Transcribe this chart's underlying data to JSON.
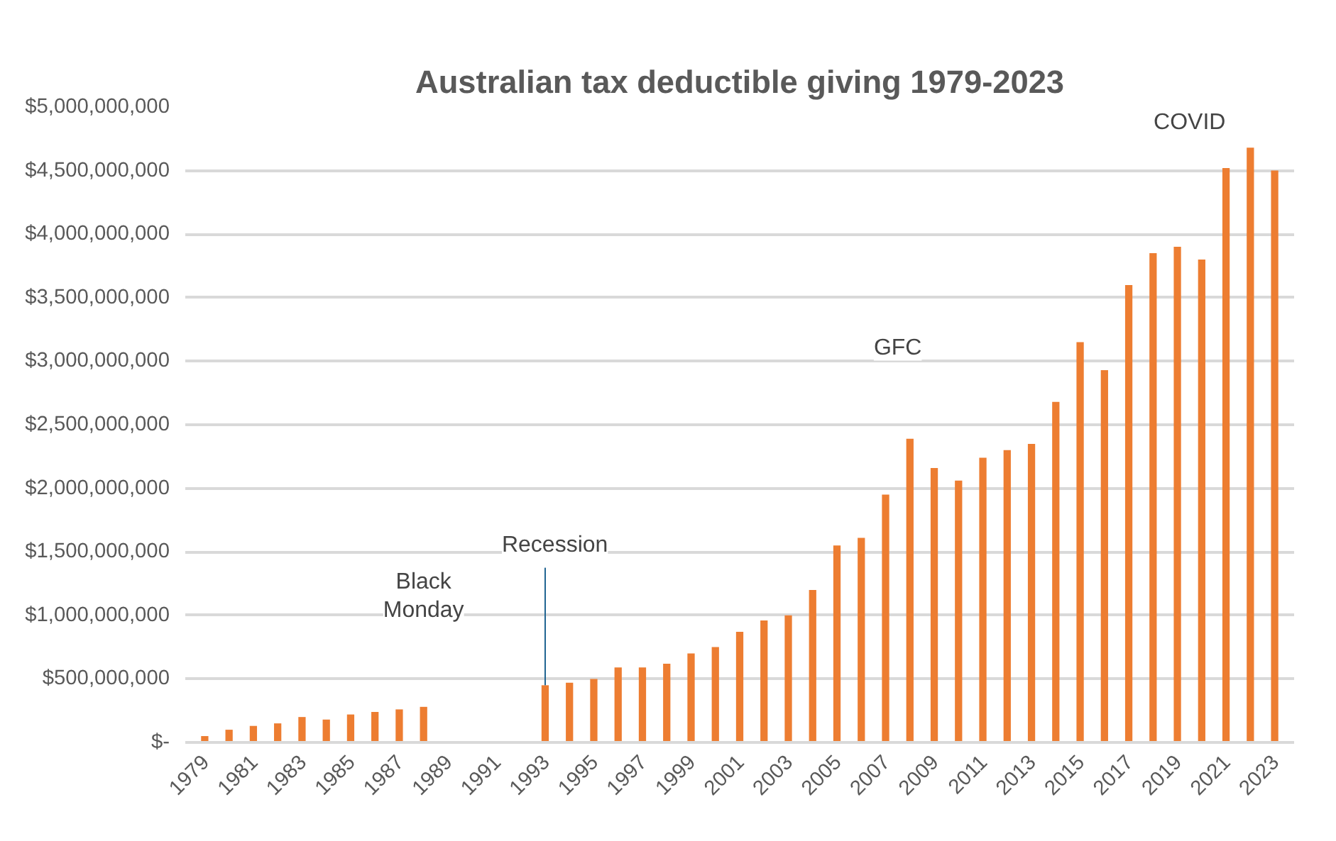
{
  "chart_data": {
    "type": "bar",
    "title": "Australian tax deductible giving 1979-2023",
    "categories": [
      "1979",
      null,
      "1981",
      null,
      "1983",
      null,
      "1985",
      null,
      "1987",
      null,
      "1989",
      null,
      "1991",
      null,
      "1993",
      null,
      "1995",
      null,
      "1997",
      null,
      "1999",
      null,
      "2001",
      null,
      "2003",
      null,
      "2005",
      null,
      "2007",
      null,
      "2009",
      null,
      "2011",
      null,
      "2013",
      null,
      "2015",
      null,
      "2017",
      null,
      "2019",
      null,
      "2021",
      null,
      "2023"
    ],
    "values": [
      50000000,
      100000000,
      130000000,
      150000000,
      200000000,
      180000000,
      220000000,
      240000000,
      260000000,
      280000000,
      null,
      null,
      null,
      null,
      450000000,
      470000000,
      500000000,
      590000000,
      590000000,
      620000000,
      700000000,
      750000000,
      870000000,
      960000000,
      1000000000,
      1200000000,
      1550000000,
      1610000000,
      1950000000,
      2390000000,
      2160000000,
      2060000000,
      2240000000,
      2300000000,
      2350000000,
      2680000000,
      3150000000,
      2930000000,
      3600000000,
      3850000000,
      3900000000,
      3800000000,
      4520000000,
      4680000000,
      4500000000
    ],
    "color": "#ed7d31",
    "ylim": [
      0,
      5000000000
    ],
    "yticks": [
      {
        "value": 0,
        "label": "$-"
      },
      {
        "value": 500000000,
        "label": "$500,000,000"
      },
      {
        "value": 1000000000,
        "label": "$1,000,000,000"
      },
      {
        "value": 1500000000,
        "label": "$1,500,000,000"
      },
      {
        "value": 2000000000,
        "label": "$2,000,000,000"
      },
      {
        "value": 2500000000,
        "label": "$2,500,000,000"
      },
      {
        "value": 3000000000,
        "label": "$3,000,000,000"
      },
      {
        "value": 3500000000,
        "label": "$3,500,000,000"
      },
      {
        "value": 4000000000,
        "label": "$4,000,000,000"
      },
      {
        "value": 4500000000,
        "label": "$4,500,000,000"
      },
      {
        "value": 5000000000,
        "label": "$5,000,000,000"
      }
    ],
    "grid": "y",
    "annotations": [
      "Black Monday",
      {
        "text": "Recession",
        "x": "1993",
        "y": 450000000
      },
      "GFC",
      "COVID"
    ]
  }
}
